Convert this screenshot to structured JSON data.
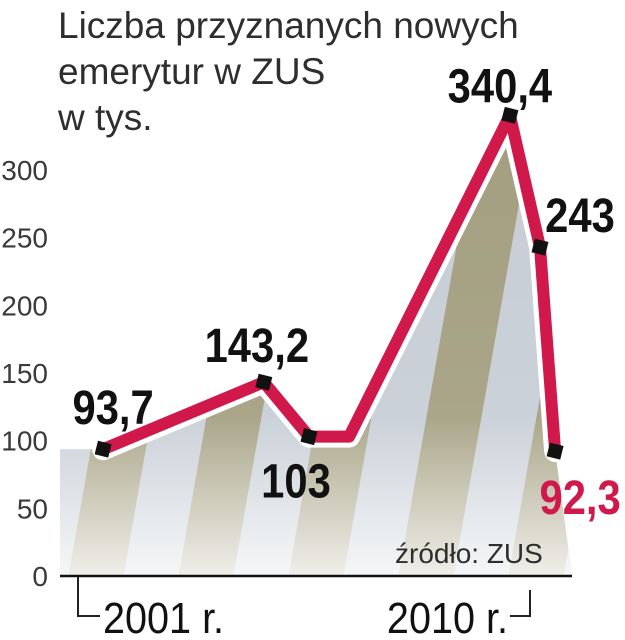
{
  "chart_data": {
    "type": "line",
    "title_lines": [
      "Liczba przyznanych nowych",
      "emerytur w ZUS",
      "w tys."
    ],
    "ylim": [
      0,
      300
    ],
    "yticks": [
      0,
      50,
      100,
      150,
      200,
      250,
      300
    ],
    "xticks": [
      {
        "year": 2001,
        "label": "2001 r."
      },
      {
        "year": 2010,
        "label": "2010 r."
      }
    ],
    "grid": false,
    "area_fill_colors": [
      "#a39e7f",
      "#c6cdd5"
    ],
    "series": [
      {
        "color": "#d0184a",
        "outline_color": "#ffffff",
        "marker_color": "#111111",
        "label_color": "#111111",
        "points": [
          {
            "x": 2001.5,
            "y": 93.7,
            "label": "93,7"
          },
          {
            "x": 2004.7,
            "y": 143.2,
            "label": "143,2"
          },
          {
            "x": 2005.6,
            "y": 103,
            "label": "103"
          },
          {
            "x": 2006.4,
            "y": 103,
            "marker": false
          },
          {
            "x": 2009.6,
            "y": 340.4,
            "label": "340,4"
          },
          {
            "x": 2010.2,
            "y": 243,
            "label": "243"
          },
          {
            "x": 2010.5,
            "y": 92.3,
            "label": "92,3",
            "label_color": "#d0184a"
          }
        ]
      }
    ],
    "source": "źródło: ZUS"
  }
}
